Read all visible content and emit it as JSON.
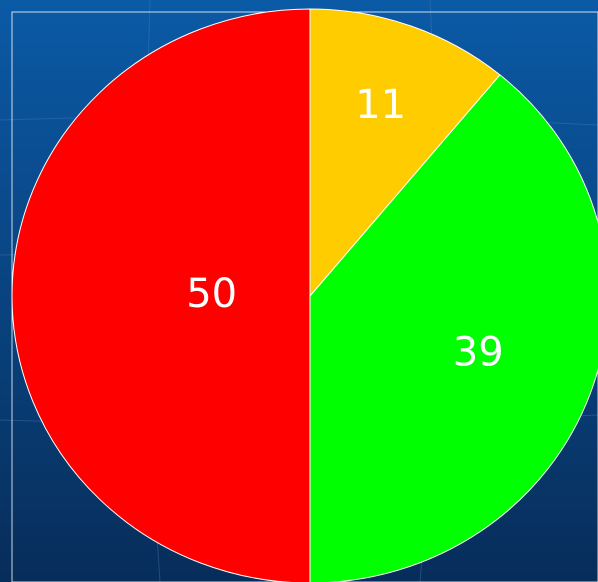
{
  "chart_data": {
    "type": "pie",
    "categories": [
      null,
      null,
      null
    ],
    "values": [
      11,
      39,
      50
    ],
    "colors": [
      "#ffcc00",
      "#00ff00",
      "#ff0000"
    ]
  }
}
